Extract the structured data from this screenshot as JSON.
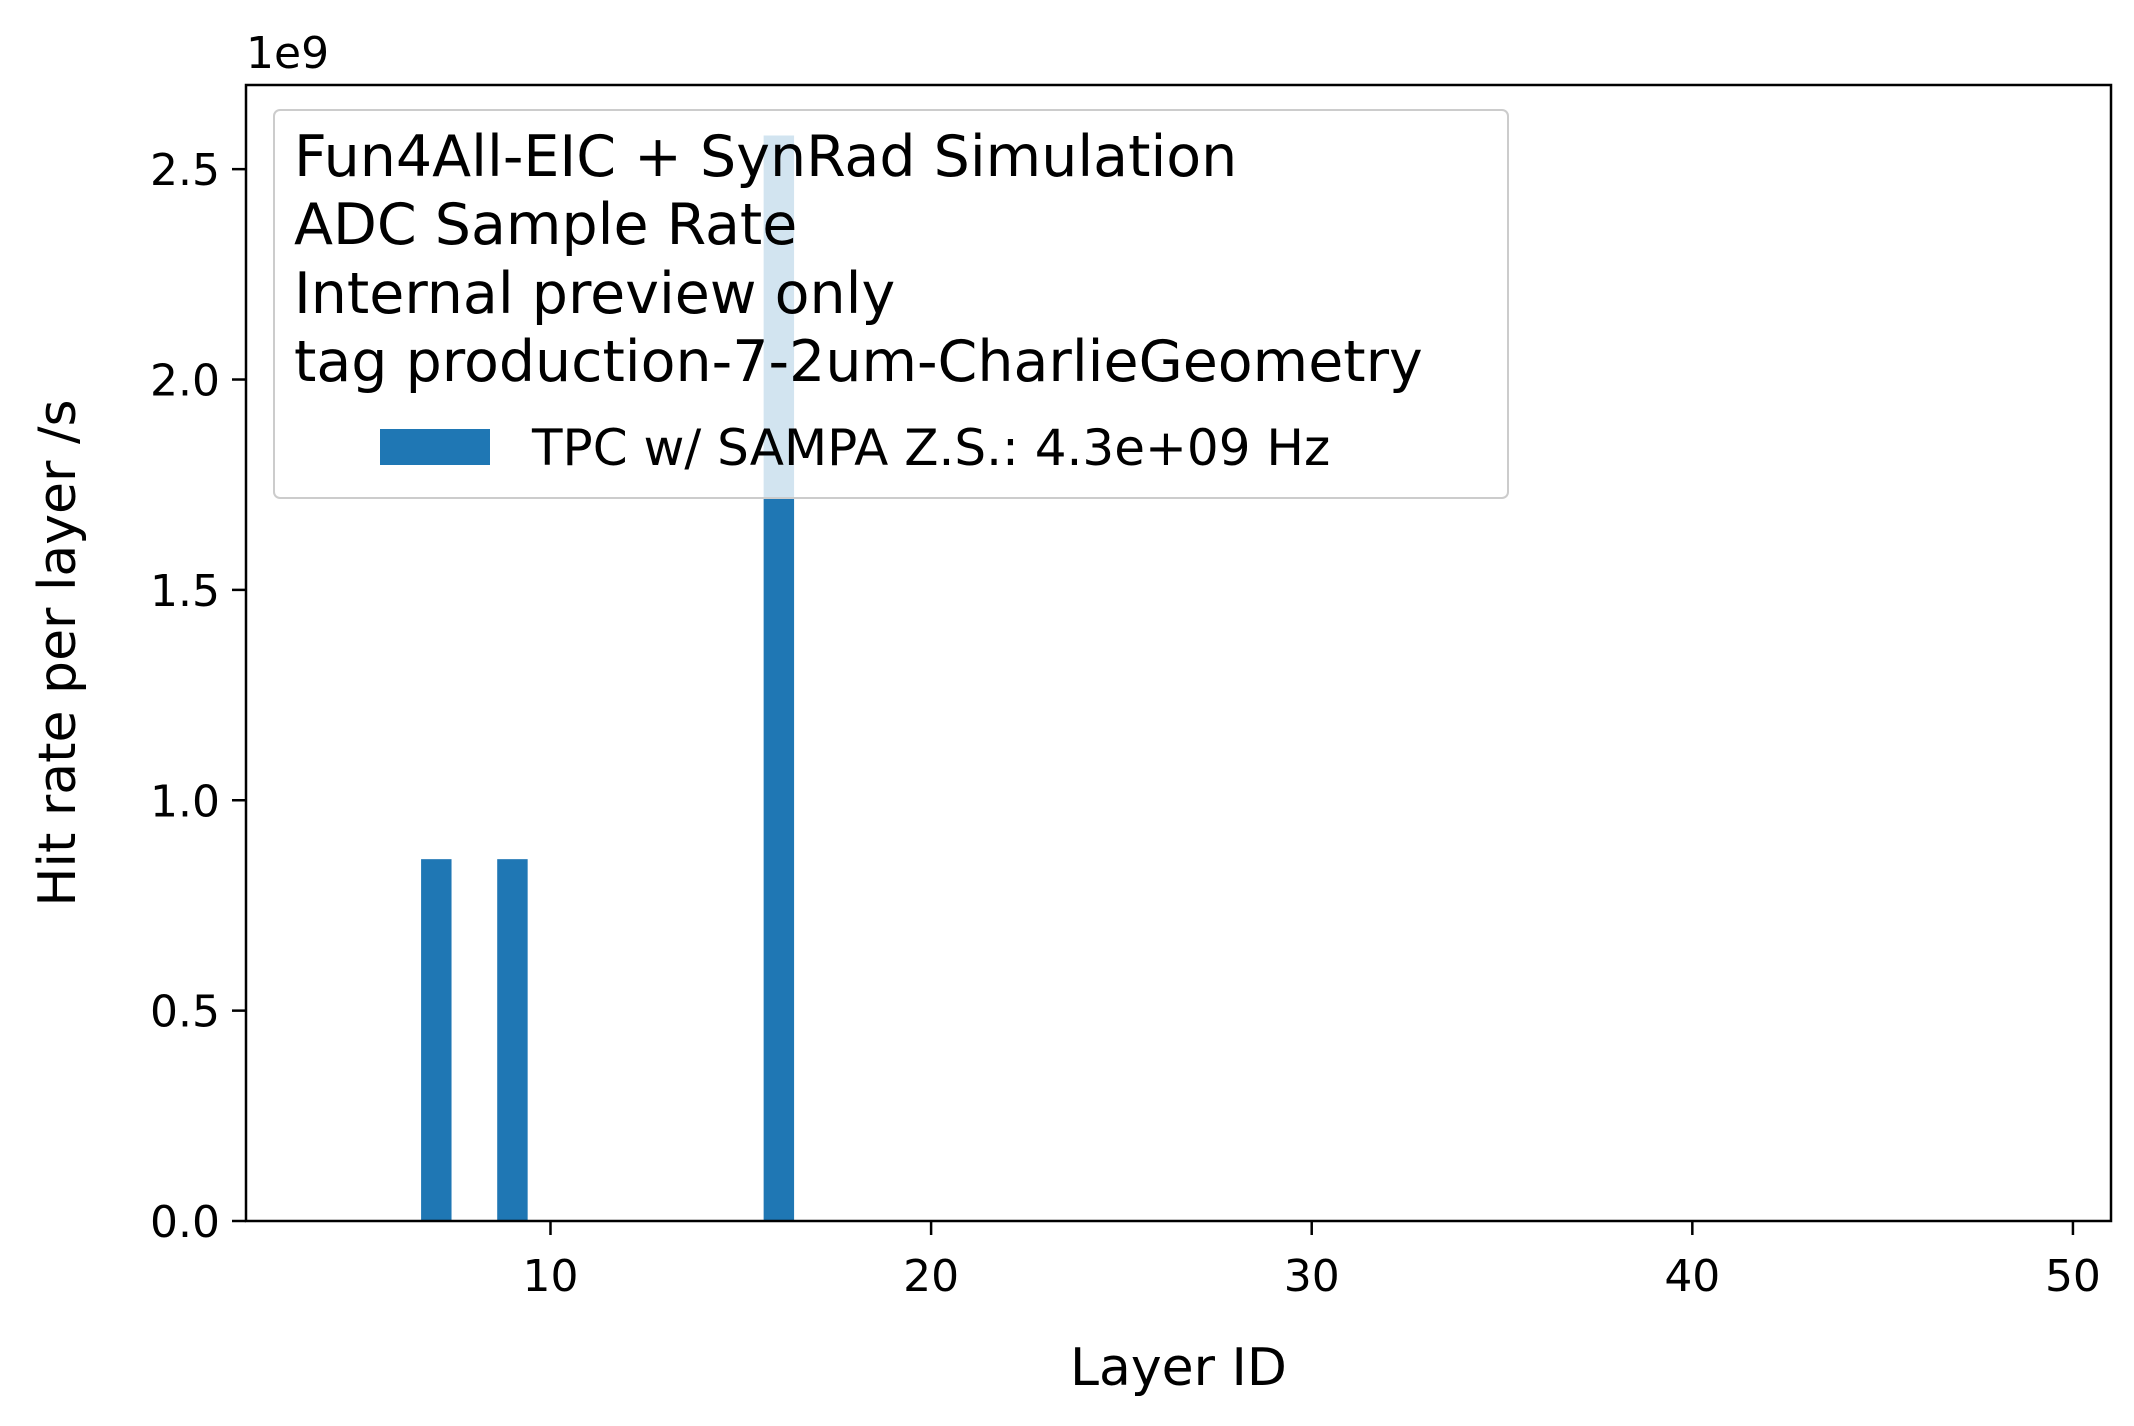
{
  "chart_data": {
    "type": "bar",
    "x": [
      7,
      9,
      16
    ],
    "values": [
      860000000,
      860000000,
      2580000000
    ],
    "xlabel": "Layer ID",
    "ylabel": "Hit rate per layer /s",
    "xlim": [
      2,
      51
    ],
    "ylim": [
      0,
      2700000000.0
    ],
    "y_offset_label": "1e9",
    "bar_width": 0.8,
    "x_ticks": [
      10,
      20,
      30,
      40,
      50
    ],
    "x_tick_labels": [
      "10",
      "20",
      "30",
      "40",
      "50"
    ],
    "y_ticks": [
      0,
      500000000.0,
      1000000000.0,
      1500000000.0,
      2000000000.0,
      2500000000.0
    ],
    "y_tick_labels": [
      "0.0",
      "0.5",
      "1.0",
      "1.5",
      "2.0",
      "2.5"
    ],
    "legend_title_lines": [
      "Fun4All-EIC + SynRad Simulation",
      "ADC Sample Rate",
      "Internal preview only",
      "tag production-7-2um-CharlieGeometry"
    ],
    "series": [
      {
        "name": "TPC w/ SAMPA Z.S.: 4.3e+09 Hz",
        "color": "#1f77b4"
      }
    ],
    "legend_position": "top-left",
    "grid": false
  }
}
